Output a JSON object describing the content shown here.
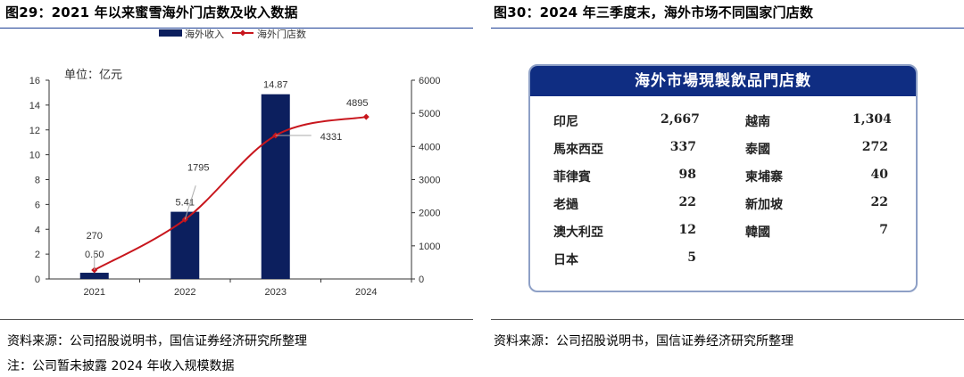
{
  "left": {
    "title": "图29：2021 年以来蜜雪海外门店数及收入数据",
    "source": "资料来源：公司招股说明书，国信证券经济研究所整理",
    "note": "注：公司暂未披露 2024 年收入规模数据"
  },
  "right": {
    "title": "图30：2024 年三季度末，海外市场不同国家门店数",
    "source": "资料来源：公司招股说明书，国信证券经济研究所整理",
    "table_title": "海外市場現製飲品門店數",
    "rows": [
      {
        "n1": "印尼",
        "v1": "2,667",
        "n2": "越南",
        "v2": "1,304"
      },
      {
        "n1": "馬來西亞",
        "v1": "337",
        "n2": "泰國",
        "v2": "272"
      },
      {
        "n1": "菲律賓",
        "v1": "98",
        "n2": "柬埔寨",
        "v2": "40"
      },
      {
        "n1": "老撾",
        "v1": "22",
        "n2": "新加坡",
        "v2": "22"
      },
      {
        "n1": "澳大利亞",
        "v1": "12",
        "n2": "韓國",
        "v2": "7"
      },
      {
        "n1": "日本",
        "v1": "5",
        "n2": "",
        "v2": ""
      }
    ]
  },
  "chart_data": {
    "type": "bar+line",
    "unit_label": "单位：亿元",
    "categories": [
      "2021",
      "2022",
      "2023",
      "2024"
    ],
    "series": [
      {
        "name": "海外收入",
        "type": "bar",
        "axis": "left",
        "values": [
          0.5,
          5.41,
          14.87,
          null
        ],
        "labels": [
          "0.50",
          "5.41",
          "14.87",
          ""
        ],
        "color": "#0c1f5e"
      },
      {
        "name": "海外门店数",
        "type": "line",
        "axis": "right",
        "values": [
          270,
          1795,
          4331,
          4895
        ],
        "labels": [
          "270",
          "1795",
          "4331",
          "4895"
        ],
        "color": "#c8161d"
      }
    ],
    "left_axis": {
      "range": [
        0,
        16
      ],
      "ticks": [
        "0",
        "2",
        "4",
        "6",
        "8",
        "10",
        "12",
        "14",
        "16"
      ]
    },
    "right_axis": {
      "range": [
        0,
        6000
      ],
      "ticks": [
        "0",
        "1000",
        "2000",
        "3000",
        "4000",
        "5000",
        "6000"
      ]
    },
    "legend": "top-center"
  }
}
